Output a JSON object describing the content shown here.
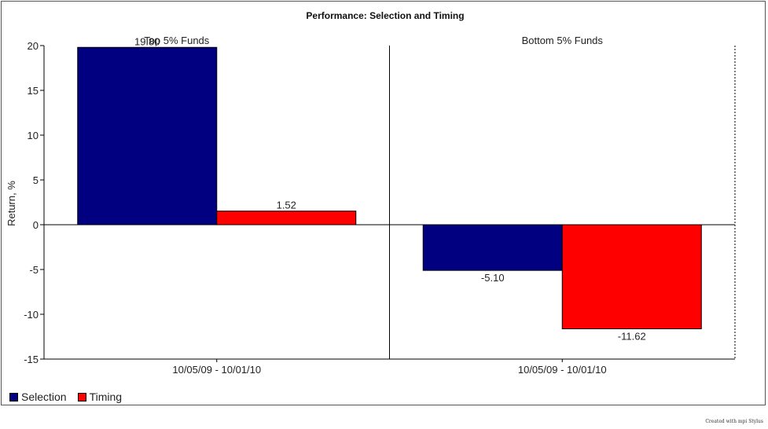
{
  "colors": {
    "selection": "#000080",
    "timing": "#ff0000",
    "axis": "#000000"
  },
  "credit": "Created with mpi Stylus",
  "chart_data": {
    "type": "bar",
    "title": "Performance: Selection and Timing",
    "ylabel": "Return, %",
    "ylim": [
      -15,
      20
    ],
    "yticks": [
      20,
      15,
      10,
      5,
      0,
      -5,
      -10,
      -15
    ],
    "grid": false,
    "legend_position": "bottom-left",
    "series": [
      {
        "name": "Selection"
      },
      {
        "name": "Timing"
      }
    ],
    "panels": [
      {
        "title": "Top 5% Funds",
        "category": "10/05/09 - 10/01/10",
        "values": [
          19.8,
          1.52
        ],
        "labels": [
          "19.80",
          "1.52"
        ]
      },
      {
        "title": "Bottom 5% Funds",
        "category": "10/05/09 - 10/01/10",
        "values": [
          -5.1,
          -11.62
        ],
        "labels": [
          "-5.10",
          "-11.62"
        ]
      }
    ]
  }
}
